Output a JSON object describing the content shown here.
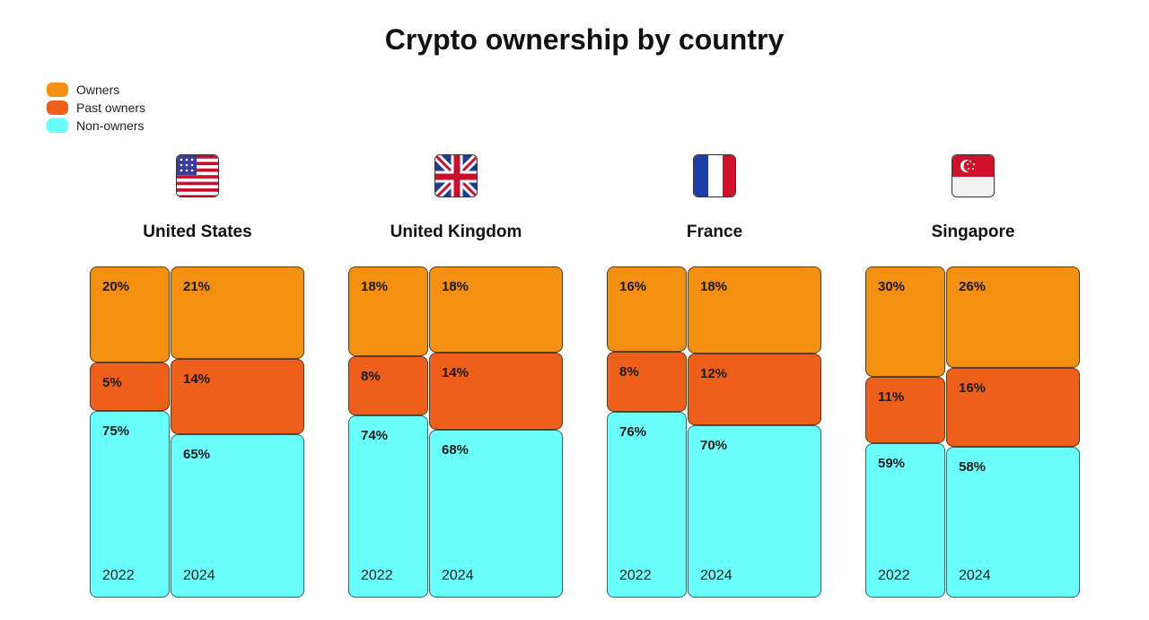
{
  "chart_data": {
    "type": "bar",
    "title": "Crypto ownership by country",
    "legend_placement": "top-left",
    "legend": [
      {
        "name": "Owners",
        "color": "#F39012"
      },
      {
        "name": "Past owners",
        "color": "#EE5F1B"
      },
      {
        "name": "Non-owners",
        "color": "#6BFFFB"
      }
    ],
    "countries": [
      {
        "name": "United States",
        "flag": "us-flag",
        "years": [
          {
            "year": "2022",
            "owners": 20,
            "past_owners": 5,
            "non_owners": 75
          },
          {
            "year": "2024",
            "owners": 21,
            "past_owners": 14,
            "non_owners": 65
          }
        ]
      },
      {
        "name": "United Kingdom",
        "flag": "uk-flag",
        "years": [
          {
            "year": "2022",
            "owners": 18,
            "past_owners": 8,
            "non_owners": 74
          },
          {
            "year": "2024",
            "owners": 18,
            "past_owners": 14,
            "non_owners": 68
          }
        ]
      },
      {
        "name": "France",
        "flag": "france-flag",
        "years": [
          {
            "year": "2022",
            "owners": 16,
            "past_owners": 8,
            "non_owners": 76
          },
          {
            "year": "2024",
            "owners": 18,
            "past_owners": 12,
            "non_owners": 70
          }
        ]
      },
      {
        "name": "Singapore",
        "flag": "singapore-flag",
        "years": [
          {
            "year": "2022",
            "owners": 30,
            "past_owners": 11,
            "non_owners": 59
          },
          {
            "year": "2024",
            "owners": 26,
            "past_owners": 16,
            "non_owners": 58
          }
        ]
      }
    ]
  }
}
